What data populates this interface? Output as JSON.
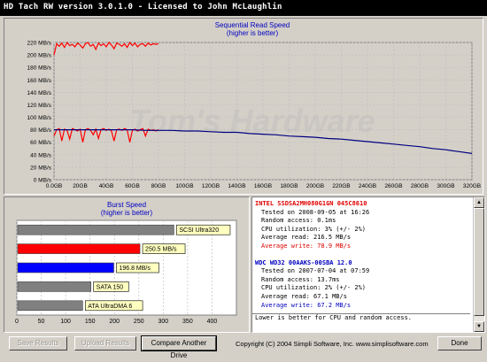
{
  "window": {
    "title": "HD Tach RW version 3.0.1.0 - Licensed to John McLaughlin"
  },
  "seq_chart": {
    "title": "Sequential Read Speed",
    "subtitle": "(higher is better)",
    "watermark": "Tom's Hardware"
  },
  "burst_chart": {
    "title": "Burst Speed",
    "subtitle": "(higher is better)"
  },
  "chart_data": [
    {
      "type": "line",
      "title": "Sequential Read Speed",
      "subtitle": "(higher is better)",
      "x_unit": "GB",
      "xlim": [
        0,
        320
      ],
      "x_ticks": [
        "0.0GB",
        "20GB",
        "40GB",
        "60GB",
        "80GB",
        "100GB",
        "120GB",
        "140GB",
        "160GB",
        "180GB",
        "200GB",
        "220GB",
        "240GB",
        "260GB",
        "280GB",
        "300GB",
        "320GB"
      ],
      "ylim": [
        0,
        220
      ],
      "y_ticks": [
        "0 MB/s",
        "20 MB/s",
        "40 MB/s",
        "60 MB/s",
        "80 MB/s",
        "100 MB/s",
        "120 MB/s",
        "140 MB/s",
        "160 MB/s",
        "180 MB/s",
        "200 MB/s",
        "220 MB/s"
      ],
      "grid": true,
      "series": [
        {
          "color": "#ff0000",
          "x": [
            0,
            2,
            4,
            6,
            8,
            10,
            12,
            14,
            16,
            18,
            20,
            22,
            24,
            26,
            28,
            30,
            32,
            34,
            36,
            38,
            40,
            42,
            44,
            46,
            48,
            50,
            52,
            54,
            56,
            58,
            60,
            62,
            64,
            66,
            68,
            70,
            72,
            74,
            76,
            78,
            80
          ],
          "y": [
            200,
            218,
            214,
            219,
            212,
            220,
            215,
            217,
            213,
            219,
            216,
            211,
            218,
            220,
            214,
            217,
            209,
            219,
            215,
            218,
            213,
            220,
            216,
            210,
            219,
            217,
            214,
            218,
            212,
            220,
            215,
            219,
            213,
            217,
            218,
            214,
            219,
            216,
            218,
            217,
            218
          ]
        },
        {
          "color": "#ff0000",
          "x": [
            0,
            2,
            4,
            6,
            8,
            10,
            12,
            14,
            16,
            18,
            20,
            22,
            24,
            26,
            28,
            30,
            32,
            34,
            36,
            38,
            40,
            42,
            44,
            46,
            48,
            50,
            52,
            54,
            56,
            58,
            60,
            62,
            64,
            66,
            68,
            70,
            72,
            74,
            76,
            78,
            80
          ],
          "y": [
            70,
            80,
            82,
            62,
            81,
            79,
            65,
            82,
            80,
            78,
            81,
            60,
            80,
            82,
            79,
            72,
            81,
            66,
            80,
            82,
            79,
            81,
            78,
            62,
            80,
            81,
            79,
            82,
            80,
            60,
            79,
            81,
            78,
            80,
            82,
            70,
            81,
            79,
            80,
            78,
            80
          ]
        },
        {
          "color": "#000080",
          "x": [
            0,
            10,
            20,
            30,
            40,
            50,
            60,
            70,
            80,
            90,
            100,
            110,
            120,
            130,
            140,
            150,
            160,
            170,
            180,
            190,
            200,
            210,
            220,
            230,
            240,
            250,
            260,
            270,
            280,
            290,
            300,
            310,
            320
          ],
          "y": [
            80,
            80,
            80,
            80,
            80,
            80,
            80,
            79,
            79,
            79,
            78,
            78,
            77,
            76,
            76,
            74,
            73,
            72,
            70,
            69,
            68,
            66,
            65,
            63,
            61,
            59,
            57,
            55,
            53,
            50,
            48,
            45,
            42
          ]
        }
      ]
    },
    {
      "type": "bar",
      "title": "Burst Speed",
      "subtitle": "(higher is better)",
      "xlim": [
        0,
        450
      ],
      "x_ticks": [
        "0",
        "50",
        "100",
        "150",
        "200",
        "250",
        "300",
        "350",
        "400"
      ],
      "bars": [
        {
          "label": "SCSI Ultra320",
          "value": 320,
          "color": "#808080"
        },
        {
          "label": "250.5 MB/s",
          "value": 250.5,
          "color": "#ff0000"
        },
        {
          "label": "196.8 MB/s",
          "value": 196.8,
          "color": "#0000ff"
        },
        {
          "label": "SATA 150",
          "value": 150,
          "color": "#808080"
        },
        {
          "label": "ATA UltraDMA 6",
          "value": 133,
          "color": "#808080"
        }
      ]
    }
  ],
  "drives": [
    {
      "name": "INTEL SSDSA2MH080G1GN 045C8610",
      "tested": "Tested on 2008-09-05 at 16:26",
      "access": "Random access: 0.1ms",
      "cpu": "CPU utilization: 3% (+/- 2%)",
      "read": "Average read: 216.5 MB/s",
      "write": "Average write: 78.9 MB/s"
    },
    {
      "name": "WDC WD32 00AAKS-00SBA 12.0",
      "tested": "Tested on 2007-07-04 at 07:59",
      "access": "Random access: 13.7ms",
      "cpu": "CPU utilization: 2% (+/- 2%)",
      "read": "Average read: 67.1 MB/s",
      "write": "Average write: 67.2 MB/s"
    }
  ],
  "info_note": "Lower is better for CPU and random access.",
  "buttons": {
    "save": "Save Results",
    "upload": "Upload Results",
    "compare": "Compare Another Drive",
    "done": "Done"
  },
  "copyright": "Copyright (C) 2004 Simpli Software, Inc. www.simplisoftware.com",
  "colors": {
    "primary_drive": "#ff0000",
    "compare_drive": "#000080",
    "grid": "#c0c0c0"
  }
}
